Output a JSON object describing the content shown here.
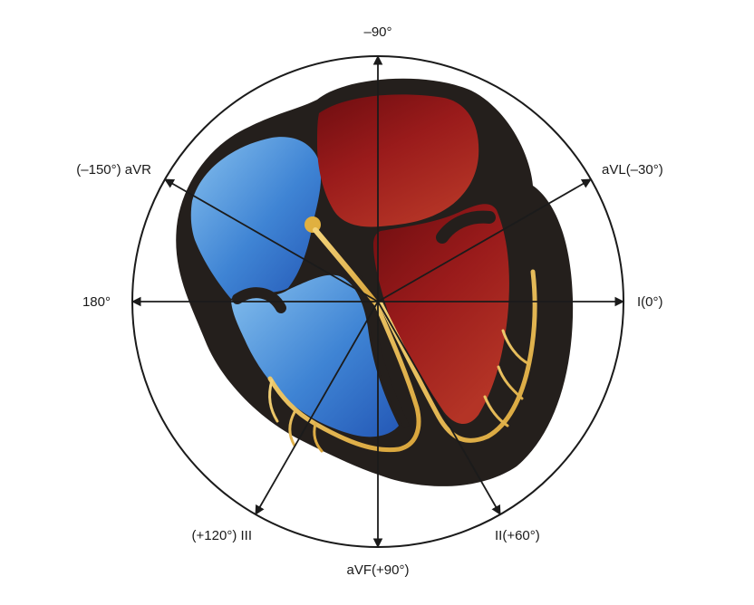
{
  "labels": {
    "top": "–90°",
    "avl": "aVL(–30°)",
    "avr": "(–150°) aVR",
    "lead_i": "I(0°)",
    "left": "180°",
    "lead_iii": "(+120°) III",
    "avf": "aVF(+90°)",
    "lead_ii": "II(+60°)"
  },
  "colors": {
    "outline": "#1b1b1b",
    "heart_wall": "#241f1c",
    "right_side": "#3a7fd0",
    "left_side": "#9a1b1b",
    "conduction": "#e0b040"
  }
}
